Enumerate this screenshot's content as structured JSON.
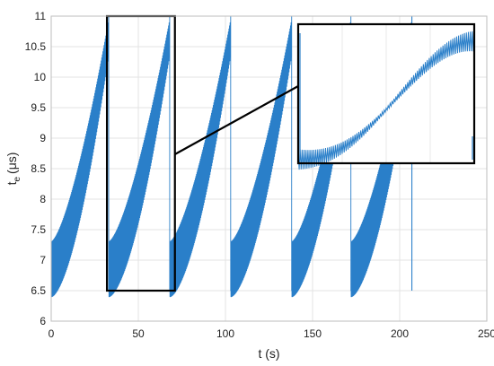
{
  "chart_data": {
    "type": "line",
    "title": "",
    "xlabel": "t (s)",
    "ylabel_main": "t",
    "ylabel_sub": "e",
    "ylabel_unit": "(μs)",
    "xlim": [
      0,
      250
    ],
    "ylim": [
      6,
      11
    ],
    "x_ticks": [
      0,
      50,
      100,
      150,
      200,
      250
    ],
    "y_ticks": [
      6,
      6.5,
      7,
      7.5,
      8,
      8.5,
      9,
      9.5,
      10,
      10.5,
      11
    ],
    "y_tick_labels": [
      "6",
      "6.5",
      "7",
      "7.5",
      "8",
      "8.5",
      "9",
      "9.5",
      "10",
      "10.5",
      "11"
    ],
    "grid": true,
    "series_color": "#2a7fc9",
    "cycles": [
      {
        "start": 0,
        "end": 33
      },
      {
        "start": 33,
        "end": 68
      },
      {
        "start": 68,
        "end": 103
      },
      {
        "start": 103,
        "end": 138
      },
      {
        "start": 138,
        "end": 172
      },
      {
        "start": 172,
        "end": 207
      }
    ],
    "ramp_min": 6.5,
    "ramp_max": 11,
    "drop_end_x": 207,
    "drop_end_y": 6.5,
    "tail_start": 207,
    "tail_end": 250,
    "tail_value": 6,
    "zoom_window": {
      "x": [
        32,
        71
      ],
      "y": [
        6.5,
        11
      ]
    },
    "inset": {
      "xlim": [
        32,
        71
      ],
      "ylim": [
        6.5,
        11
      ]
    }
  }
}
